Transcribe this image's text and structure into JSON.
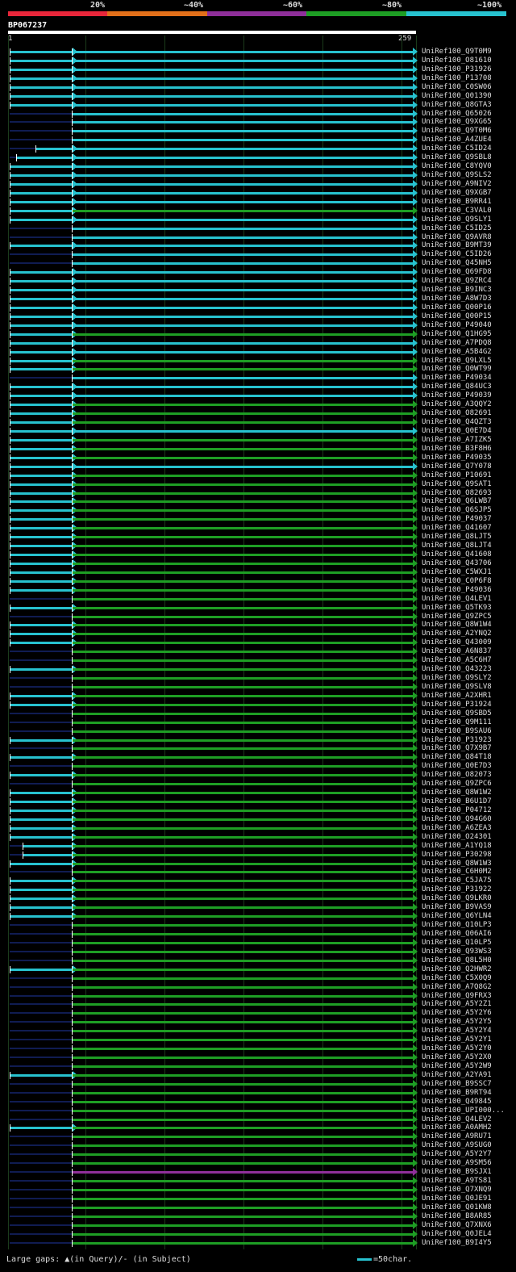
{
  "colors": {
    "red": "#e8263a",
    "orange": "#e2701a",
    "purple": "#8f2f9a",
    "green": "#1e9e24",
    "cyan": "#27c2cf",
    "navy": "#101c52"
  },
  "legend": [
    {
      "label": "20%",
      "color": "#e8263a"
    },
    {
      "label": "~40%",
      "color": "#e2701a"
    },
    {
      "label": "~60%",
      "color": "#8f2f9a"
    },
    {
      "label": "~80%",
      "color": "#1e9e24"
    },
    {
      "label": "~100%",
      "color": "#27c2cf"
    }
  ],
  "query": {
    "name": "BP067237",
    "start_label": "1",
    "end_label": "259"
  },
  "hits": [
    {
      "label": "UniRef100_Q9T0M9",
      "a": 0,
      "s": 0,
      "c": "cyan",
      "m": "tr"
    },
    {
      "label": "UniRef100_O81610",
      "a": 0,
      "s": 0,
      "c": "cyan",
      "m": "tr"
    },
    {
      "label": "UniRef100_P31926",
      "a": 0,
      "s": 0,
      "c": "cyan",
      "m": "tr"
    },
    {
      "label": "UniRef100_P13708",
      "a": 0,
      "s": 0,
      "c": "cyan",
      "m": "tr"
    },
    {
      "label": "UniRef100_C0SW06",
      "a": 0,
      "s": 0,
      "c": "cyan",
      "m": "tr"
    },
    {
      "label": "UniRef100_Q01390",
      "a": 0,
      "s": 0,
      "c": "cyan",
      "m": "tr"
    },
    {
      "label": "UniRef100_Q8GTA3",
      "a": 0,
      "s": 0,
      "c": "cyan",
      "m": "tr"
    },
    {
      "label": "UniRef100_Q65026",
      "a": 0,
      "s": 0,
      "c": "cyan",
      "m": "t"
    },
    {
      "label": "UniRef100_Q9XG65",
      "a": 0,
      "s": 0,
      "c": "cyan",
      "m": "t"
    },
    {
      "label": "UniRef100_Q9T0M6",
      "a": 0,
      "s": 0,
      "c": "cyan",
      "m": "t"
    },
    {
      "label": "UniRef100_A4ZUE4",
      "a": 0,
      "s": 0,
      "c": "cyan",
      "m": "t"
    },
    {
      "label": "UniRef100_C5ID24",
      "a": 16,
      "s": 0,
      "c": "cyan",
      "m": "tr"
    },
    {
      "label": "UniRef100_Q9SBL8",
      "a": 4,
      "s": 0,
      "c": "cyan",
      "m": "tr"
    },
    {
      "label": "UniRef100_C8YQV0",
      "a": 0,
      "s": 0,
      "c": "cyan",
      "m": "tr"
    },
    {
      "label": "UniRef100_Q9SLS2",
      "a": 0,
      "s": 0,
      "c": "cyan",
      "m": "tr"
    },
    {
      "label": "UniRef100_A9NIV2",
      "a": 0,
      "s": 0,
      "c": "cyan",
      "m": "tr"
    },
    {
      "label": "UniRef100_Q9XGB7",
      "a": 0,
      "s": 0,
      "c": "cyan",
      "m": "tr"
    },
    {
      "label": "UniRef100_B9RR41",
      "a": 0,
      "s": 0,
      "c": "cyan",
      "m": "tr"
    },
    {
      "label": "UniRef100_C3VAL0",
      "a": 0,
      "s": 0,
      "c": "green",
      "m": "tr"
    },
    {
      "label": "UniRef100_Q9SLY1",
      "a": 0,
      "s": 0,
      "c": "cyan",
      "m": "tr"
    },
    {
      "label": "UniRef100_C5ID25",
      "a": 0,
      "s": 0,
      "c": "cyan",
      "m": "t"
    },
    {
      "label": "UniRef100_Q9AVR8",
      "a": 0,
      "s": 0,
      "c": "cyan",
      "m": "t"
    },
    {
      "label": "UniRef100_B9MT39",
      "a": 0,
      "s": 0,
      "c": "cyan",
      "m": "tr"
    },
    {
      "label": "UniRef100_C5ID26",
      "a": 0,
      "s": 0,
      "c": "cyan",
      "m": "t"
    },
    {
      "label": "UniRef100_Q45NH5",
      "a": 0,
      "s": 0,
      "c": "cyan",
      "m": "t"
    },
    {
      "label": "UniRef100_Q69FD8",
      "a": 0,
      "s": 0,
      "c": "cyan",
      "m": "tr"
    },
    {
      "label": "UniRef100_Q9ZRC4",
      "a": 0,
      "s": 0,
      "c": "cyan",
      "m": "tr"
    },
    {
      "label": "UniRef100_B9INC3",
      "a": 0,
      "s": 0,
      "c": "cyan",
      "m": "tr"
    },
    {
      "label": "UniRef100_A8W7D3",
      "a": 0,
      "s": 0,
      "c": "cyan",
      "m": "tr"
    },
    {
      "label": "UniRef100_Q00P16",
      "a": 0,
      "s": 0,
      "c": "cyan",
      "m": "tr"
    },
    {
      "label": "UniRef100_Q00P15",
      "a": 0,
      "s": 0,
      "c": "cyan",
      "m": "tr"
    },
    {
      "label": "UniRef100_P49040",
      "a": 0,
      "s": 0,
      "c": "cyan",
      "m": "tr"
    },
    {
      "label": "UniRef100_Q1HG95",
      "a": 0,
      "s": 0,
      "c": "green",
      "m": "tr"
    },
    {
      "label": "UniRef100_A7PDQ8",
      "a": 0,
      "s": 0,
      "c": "cyan",
      "m": "tr"
    },
    {
      "label": "UniRef100_A5B4G2",
      "a": 0,
      "s": 0,
      "c": "cyan",
      "m": "tr"
    },
    {
      "label": "UniRef100_Q9LXL5",
      "a": 0,
      "s": 0,
      "c": "green",
      "m": "tr"
    },
    {
      "label": "UniRef100_Q0WT99",
      "a": 0,
      "s": 0,
      "c": "green",
      "m": "tr"
    },
    {
      "label": "UniRef100_P49034",
      "a": 0,
      "s": 0,
      "c": "cyan",
      "m": "t"
    },
    {
      "label": "UniRef100_Q84UC3",
      "a": 0,
      "s": 0,
      "c": "cyan",
      "m": "tr"
    },
    {
      "label": "UniRef100_P49039",
      "a": 0,
      "s": 0,
      "c": "cyan",
      "m": "tr"
    },
    {
      "label": "UniRef100_A3QQY2",
      "a": 0,
      "s": 0,
      "c": "green",
      "m": "tr"
    },
    {
      "label": "UniRef100_O82691",
      "a": 0,
      "s": 0,
      "c": "green",
      "m": "tr"
    },
    {
      "label": "UniRef100_Q4QZT3",
      "a": 0,
      "s": 0,
      "c": "green",
      "m": "tr"
    },
    {
      "label": "UniRef100_Q0E7D4",
      "a": 0,
      "s": 0,
      "c": "cyan",
      "m": "tr"
    },
    {
      "label": "UniRef100_A7IZK5",
      "a": 0,
      "s": 0,
      "c": "green",
      "m": "tr"
    },
    {
      "label": "UniRef100_B3F8H6",
      "a": 0,
      "s": 0,
      "c": "green",
      "m": "tr"
    },
    {
      "label": "UniRef100_P49035",
      "a": 0,
      "s": 0,
      "c": "green",
      "m": "tr"
    },
    {
      "label": "UniRef100_Q7Y078",
      "a": 0,
      "s": 0,
      "c": "cyan",
      "m": "tr"
    },
    {
      "label": "UniRef100_P10691",
      "a": 0,
      "s": 0,
      "c": "green",
      "m": "tr"
    },
    {
      "label": "UniRef100_Q9SAT1",
      "a": 0,
      "s": 0,
      "c": "green",
      "m": "tr"
    },
    {
      "label": "UniRef100_O82693",
      "a": 0,
      "s": 0,
      "c": "green",
      "m": "tr"
    },
    {
      "label": "UniRef100_Q6LWB7",
      "a": 0,
      "s": 0,
      "c": "green",
      "m": "tr"
    },
    {
      "label": "UniRef100_Q6SJP5",
      "a": 0,
      "s": 0,
      "c": "green",
      "m": "tr"
    },
    {
      "label": "UniRef100_P49037",
      "a": 0,
      "s": 0,
      "c": "green",
      "m": "tr"
    },
    {
      "label": "UniRef100_Q41607",
      "a": 0,
      "s": 0,
      "c": "green",
      "m": "tr"
    },
    {
      "label": "UniRef100_Q8LJT5",
      "a": 0,
      "s": 0,
      "c": "green",
      "m": "tr"
    },
    {
      "label": "UniRef100_Q8LJT4",
      "a": 0,
      "s": 0,
      "c": "green",
      "m": "tr"
    },
    {
      "label": "UniRef100_Q41608",
      "a": 0,
      "s": 0,
      "c": "green",
      "m": "tr"
    },
    {
      "label": "UniRef100_Q43706",
      "a": 0,
      "s": 0,
      "c": "green",
      "m": "tr"
    },
    {
      "label": "UniRef100_C5WXJ1",
      "a": 0,
      "s": 0,
      "c": "green",
      "m": "tr"
    },
    {
      "label": "UniRef100_C0P6F8",
      "a": 0,
      "s": 0,
      "c": "green",
      "m": "tr"
    },
    {
      "label": "UniRef100_P49036",
      "a": 0,
      "s": 0,
      "c": "green",
      "m": "tr"
    },
    {
      "label": "UniRef100_Q4LEV1",
      "a": 0,
      "s": 0,
      "c": "green",
      "m": "t"
    },
    {
      "label": "UniRef100_Q5TK93",
      "a": 0,
      "s": 0,
      "c": "green",
      "m": "tr"
    },
    {
      "label": "UniRef100_Q9ZPC5",
      "a": 0,
      "s": 0,
      "c": "green",
      "m": "t"
    },
    {
      "label": "UniRef100_Q8W1W4",
      "a": 0,
      "s": 0,
      "c": "green",
      "m": "tr"
    },
    {
      "label": "UniRef100_A2YNQ2",
      "a": 0,
      "s": 0,
      "c": "green",
      "m": "tr"
    },
    {
      "label": "UniRef100_Q43009",
      "a": 0,
      "s": 0,
      "c": "green",
      "m": "tr"
    },
    {
      "label": "UniRef100_A6N837",
      "a": 0,
      "s": 0,
      "c": "green",
      "m": "t"
    },
    {
      "label": "UniRef100_A5C6H7",
      "a": 0,
      "s": 0,
      "c": "green",
      "m": "t"
    },
    {
      "label": "UniRef100_Q43223",
      "a": 0,
      "s": 0,
      "c": "green",
      "m": "tr"
    },
    {
      "label": "UniRef100_Q9SLY2",
      "a": 0,
      "s": 0,
      "c": "green",
      "m": "t"
    },
    {
      "label": "UniRef100_Q9SLV8",
      "a": 0,
      "s": 0,
      "c": "green",
      "m": "t"
    },
    {
      "label": "UniRef100_A2XHR1",
      "a": 0,
      "s": 0,
      "c": "green",
      "m": "tr"
    },
    {
      "label": "UniRef100_P31924",
      "a": 0,
      "s": 0,
      "c": "green",
      "m": "tr"
    },
    {
      "label": "UniRef100_Q9SBD5",
      "a": 0,
      "s": 0,
      "c": "green",
      "m": "t"
    },
    {
      "label": "UniRef100_Q9M111",
      "a": 0,
      "s": 0,
      "c": "green",
      "m": "t"
    },
    {
      "label": "UniRef100_B9SAU6",
      "a": 0,
      "s": 0,
      "c": "green",
      "m": "t"
    },
    {
      "label": "UniRef100_P31923",
      "a": 0,
      "s": 0,
      "c": "green",
      "m": "tr"
    },
    {
      "label": "UniRef100_Q7X9B7",
      "a": 0,
      "s": 0,
      "c": "green",
      "m": "t"
    },
    {
      "label": "UniRef100_Q84T18",
      "a": 0,
      "s": 0,
      "c": "green",
      "m": "tr"
    },
    {
      "label": "UniRef100_Q0E7D3",
      "a": 0,
      "s": 0,
      "c": "green",
      "m": "t"
    },
    {
      "label": "UniRef100_O82073",
      "a": 0,
      "s": 0,
      "c": "green",
      "m": "tr"
    },
    {
      "label": "UniRef100_Q9ZPC6",
      "a": 0,
      "s": 0,
      "c": "green",
      "m": "t"
    },
    {
      "label": "UniRef100_Q8W1W2",
      "a": 0,
      "s": 0,
      "c": "green",
      "m": "tr"
    },
    {
      "label": "UniRef100_B6U1D7",
      "a": 0,
      "s": 0,
      "c": "green",
      "m": "tr"
    },
    {
      "label": "UniRef100_P04712",
      "a": 0,
      "s": 0,
      "c": "green",
      "m": "tr"
    },
    {
      "label": "UniRef100_Q94G60",
      "a": 0,
      "s": 0,
      "c": "green",
      "m": "tr"
    },
    {
      "label": "UniRef100_A6ZEA3",
      "a": 0,
      "s": 0,
      "c": "green",
      "m": "tr"
    },
    {
      "label": "UniRef100_O24301",
      "a": 0,
      "s": 0,
      "c": "green",
      "m": "tr"
    },
    {
      "label": "UniRef100_A1YQ18",
      "a": 8,
      "s": 0,
      "c": "green",
      "m": "tr"
    },
    {
      "label": "UniRef100_P30298",
      "a": 8,
      "s": 0,
      "c": "green",
      "m": "tr"
    },
    {
      "label": "UniRef100_Q8W1W3",
      "a": 0,
      "s": 0,
      "c": "green",
      "m": "tr"
    },
    {
      "label": "UniRef100_C6H0M2",
      "a": 0,
      "s": 0,
      "c": "green",
      "m": "t"
    },
    {
      "label": "UniRef100_C5JA75",
      "a": 0,
      "s": 0,
      "c": "green",
      "m": "tr"
    },
    {
      "label": "UniRef100_P31922",
      "a": 0,
      "s": 0,
      "c": "green",
      "m": "tr"
    },
    {
      "label": "UniRef100_Q9LKR0",
      "a": 0,
      "s": 0,
      "c": "green",
      "m": "tr"
    },
    {
      "label": "UniRef100_B9VAS9",
      "a": 0,
      "s": 0,
      "c": "green",
      "m": "tr"
    },
    {
      "label": "UniRef100_Q6YLN4",
      "a": 0,
      "s": 0,
      "c": "green",
      "m": "tr"
    },
    {
      "label": "UniRef100_Q10LP3",
      "a": 0,
      "s": 0,
      "c": "green",
      "m": "t"
    },
    {
      "label": "UniRef100_Q06AI6",
      "a": 0,
      "s": 0,
      "c": "green",
      "m": "t"
    },
    {
      "label": "UniRef100_Q10LP5",
      "a": 0,
      "s": 0,
      "c": "green",
      "m": "t"
    },
    {
      "label": "UniRef100_Q93WS3",
      "a": 0,
      "s": 0,
      "c": "green",
      "m": "t"
    },
    {
      "label": "UniRef100_Q8L5H0",
      "a": 0,
      "s": 0,
      "c": "green",
      "m": "t"
    },
    {
      "label": "UniRef100_Q2HWR2",
      "a": 0,
      "s": 0,
      "c": "green",
      "m": "tr"
    },
    {
      "label": "UniRef100_C5X0Q9",
      "a": 0,
      "s": 0,
      "c": "green",
      "m": "t"
    },
    {
      "label": "UniRef100_A7Q8G2",
      "a": 0,
      "s": 0,
      "c": "green",
      "m": "t"
    },
    {
      "label": "UniRef100_Q9FRX3",
      "a": 0,
      "s": 0,
      "c": "green",
      "m": "t"
    },
    {
      "label": "UniRef100_A5Y2Z1",
      "a": 0,
      "s": 0,
      "c": "green",
      "m": "t"
    },
    {
      "label": "UniRef100_A5Y2Y6",
      "a": 0,
      "s": 0,
      "c": "green",
      "m": "t"
    },
    {
      "label": "UniRef100_A5Y2Y5",
      "a": 0,
      "s": 0,
      "c": "green",
      "m": "t"
    },
    {
      "label": "UniRef100_A5Y2Y4",
      "a": 0,
      "s": 0,
      "c": "green",
      "m": "t"
    },
    {
      "label": "UniRef100_A5Y2Y1",
      "a": 0,
      "s": 0,
      "c": "green",
      "m": "t"
    },
    {
      "label": "UniRef100_A5Y2Y0",
      "a": 0,
      "s": 0,
      "c": "green",
      "m": "t"
    },
    {
      "label": "UniRef100_A5Y2X0",
      "a": 0,
      "s": 0,
      "c": "green",
      "m": "t"
    },
    {
      "label": "UniRef100_A5Y2W9",
      "a": 0,
      "s": 0,
      "c": "green",
      "m": "t"
    },
    {
      "label": "UniRef100_A2YA91",
      "a": 0,
      "s": 0,
      "c": "green",
      "m": "tr"
    },
    {
      "label": "UniRef100_B9SSC7",
      "a": 0,
      "s": 0,
      "c": "green",
      "m": "t"
    },
    {
      "label": "UniRef100_B9RT94",
      "a": 0,
      "s": 0,
      "c": "green",
      "m": "t"
    },
    {
      "label": "UniRef100_Q49845",
      "a": 0,
      "s": 0,
      "c": "green",
      "m": "t"
    },
    {
      "label": "UniRef100_UPI000...",
      "a": 0,
      "s": 0,
      "c": "green",
      "m": "t"
    },
    {
      "label": "UniRef100_Q4LEV2",
      "a": 0,
      "s": 0,
      "c": "green",
      "m": "t"
    },
    {
      "label": "UniRef100_A0AMH2",
      "a": 0,
      "s": 0,
      "c": "green",
      "m": "tr"
    },
    {
      "label": "UniRef100_A9RU71",
      "a": 0,
      "s": 0,
      "c": "green",
      "m": "t"
    },
    {
      "label": "UniRef100_A9SUG0",
      "a": 0,
      "s": 0,
      "c": "green",
      "m": "t"
    },
    {
      "label": "UniRef100_A5Y2Y7",
      "a": 0,
      "s": 0,
      "c": "green",
      "m": "t"
    },
    {
      "label": "UniRef100_A9SM56",
      "a": 0,
      "s": 0,
      "c": "green",
      "m": "t"
    },
    {
      "label": "UniRef100_B9SJX1",
      "a": 0,
      "s": 0,
      "c": "purple",
      "m": "t"
    },
    {
      "label": "UniRef100_A9TS81",
      "a": 0,
      "s": 0,
      "c": "green",
      "m": "t"
    },
    {
      "label": "UniRef100_Q7XNQ9",
      "a": 0,
      "s": 0,
      "c": "green",
      "m": "t"
    },
    {
      "label": "UniRef100_Q0JE91",
      "a": 0,
      "s": 0,
      "c": "green",
      "m": "t"
    },
    {
      "label": "UniRef100_Q01KW8",
      "a": 0,
      "s": 0,
      "c": "green",
      "m": "t"
    },
    {
      "label": "UniRef100_B8AR85",
      "a": 0,
      "s": 0,
      "c": "green",
      "m": "t"
    },
    {
      "label": "UniRef100_Q7XNX6",
      "a": 0,
      "s": 0,
      "c": "green",
      "m": "t"
    },
    {
      "label": "UniRef100_Q0JEL4",
      "a": 0,
      "s": 0,
      "c": "green",
      "m": "t"
    },
    {
      "label": "UniRef100_B9I4Y5",
      "a": 0,
      "s": 0,
      "c": "green",
      "m": "t"
    }
  ],
  "footer": {
    "gaps_text": "Large gaps: ▲(in Query)/- (in Subject)",
    "scale_text": "=50char."
  }
}
